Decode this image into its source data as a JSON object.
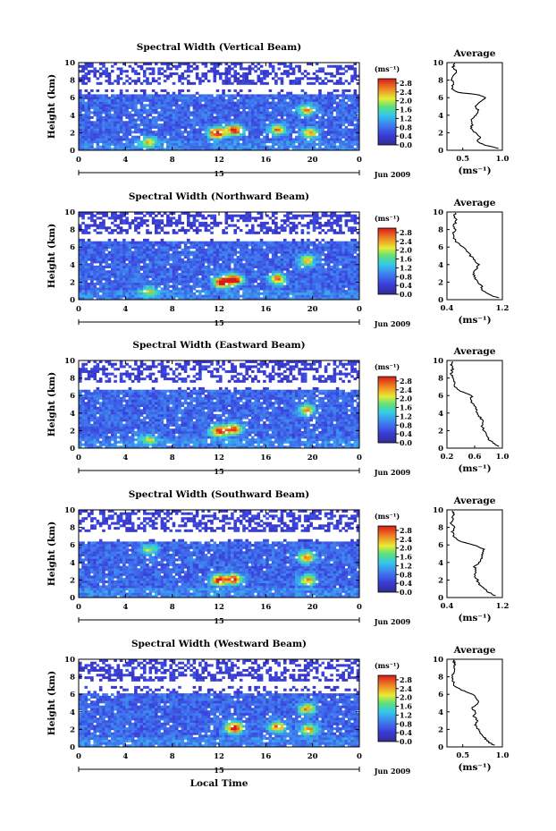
{
  "figure": {
    "xlabel": "Local Time",
    "date_label": "Jun 2009",
    "day_label": "15",
    "ylabel": "Height (km)",
    "colorbar_unit": "(ms⁻¹)",
    "avg_title": "Average",
    "avg_unit": "(ms⁻¹)"
  },
  "chart_data": [
    {
      "type": "heatmap",
      "title": "Spectral Width (Vertical Beam)",
      "xlabel": "Local Time",
      "ylabel": "Height (km)",
      "xticks": [
        "0",
        "4",
        "8",
        "12",
        "16",
        "20",
        "0"
      ],
      "xlim": [
        0,
        24
      ],
      "yticks": [
        "0",
        "2",
        "4",
        "6",
        "8",
        "10"
      ],
      "ylim": [
        0,
        10
      ],
      "colorbar": {
        "unit": "(ms⁻¹)",
        "ticks": [
          "0.0",
          "0.4",
          "0.8",
          "1.2",
          "1.6",
          "2.0",
          "2.4",
          "2.8"
        ],
        "range": [
          0,
          3.0
        ]
      },
      "coverage_top_km": 6.5,
      "sparse_layer_km": [
        7.0,
        10.0
      ],
      "hotspots": [
        {
          "t": 11.8,
          "h": 2.0,
          "v": 2.6
        },
        {
          "t": 13.3,
          "h": 2.3,
          "v": 2.4
        },
        {
          "t": 17.0,
          "h": 2.4,
          "v": 1.9
        },
        {
          "t": 19.5,
          "h": 4.6,
          "v": 1.7
        },
        {
          "t": 19.8,
          "h": 2.0,
          "v": 1.8
        },
        {
          "t": 6.0,
          "h": 1.0,
          "v": 1.4
        }
      ],
      "avg_profile": {
        "title": "Average",
        "xlabel": "(ms⁻¹)",
        "xticks": [
          "0.5",
          "1.0"
        ],
        "xlim": [
          0.3,
          1.0
        ],
        "ylim": [
          0,
          10
        ],
        "height": [
          0.2,
          0.6,
          1.0,
          1.5,
          2.0,
          2.5,
          3.0,
          3.5,
          4.0,
          4.5,
          5.0,
          5.5,
          6.0,
          6.3,
          6.6,
          7.0,
          7.5,
          8.0,
          8.5,
          9.0,
          9.5,
          9.9
        ],
        "value": [
          0.95,
          0.78,
          0.68,
          0.72,
          0.66,
          0.6,
          0.62,
          0.6,
          0.66,
          0.7,
          0.66,
          0.72,
          0.78,
          0.72,
          0.45,
          0.35,
          0.38,
          0.36,
          0.39,
          0.42,
          0.38,
          0.4
        ]
      }
    },
    {
      "type": "heatmap",
      "title": "Spectral Width (Northward Beam)",
      "xlabel": "Local Time",
      "ylabel": "Height (km)",
      "xticks": [
        "0",
        "4",
        "8",
        "12",
        "16",
        "20",
        "0"
      ],
      "xlim": [
        0,
        24
      ],
      "yticks": [
        "0",
        "2",
        "4",
        "6",
        "8",
        "10"
      ],
      "ylim": [
        0,
        10
      ],
      "colorbar": {
        "unit": "(ms⁻¹)",
        "ticks": [
          "0.0",
          "0.4",
          "0.8",
          "1.2",
          "1.6",
          "2.0",
          "2.4",
          "2.8"
        ],
        "range": [
          0,
          3.0
        ]
      },
      "coverage_top_km": 6.8,
      "sparse_layer_km": [
        7.0,
        10.0
      ],
      "hotspots": [
        {
          "t": 12.2,
          "h": 2.0,
          "v": 2.5
        },
        {
          "t": 13.3,
          "h": 2.3,
          "v": 2.8
        },
        {
          "t": 17.0,
          "h": 2.4,
          "v": 2.0
        },
        {
          "t": 19.5,
          "h": 4.5,
          "v": 1.6
        },
        {
          "t": 6.0,
          "h": 1.0,
          "v": 1.3
        }
      ],
      "avg_profile": {
        "title": "Average",
        "xlabel": "(ms⁻¹)",
        "xticks": [
          "0.4",
          "1.2"
        ],
        "xlim": [
          0.4,
          1.2
        ],
        "ylim": [
          0,
          10
        ],
        "height": [
          0.2,
          0.6,
          1.0,
          1.5,
          2.0,
          2.5,
          3.0,
          3.5,
          4.0,
          4.5,
          5.0,
          5.5,
          6.0,
          6.5,
          7.0,
          7.5,
          8.0,
          8.5,
          9.0,
          9.5,
          9.9
        ],
        "value": [
          1.15,
          1.0,
          0.92,
          0.9,
          0.85,
          0.8,
          0.78,
          0.82,
          0.86,
          0.8,
          0.74,
          0.7,
          0.62,
          0.55,
          0.5,
          0.48,
          0.52,
          0.5,
          0.54,
          0.5,
          0.52
        ]
      }
    },
    {
      "type": "heatmap",
      "title": "Spectral Width (Eastward Beam)",
      "xlabel": "Local Time",
      "ylabel": "Height (km)",
      "xticks": [
        "0",
        "4",
        "8",
        "12",
        "16",
        "20",
        "0"
      ],
      "xlim": [
        0,
        24
      ],
      "yticks": [
        "0",
        "2",
        "4",
        "6",
        "8",
        "10"
      ],
      "ylim": [
        0,
        10
      ],
      "colorbar": {
        "unit": "(ms⁻¹)",
        "ticks": [
          "0.0",
          "0.4",
          "0.8",
          "1.2",
          "1.6",
          "2.0",
          "2.4",
          "2.8"
        ],
        "range": [
          0,
          3.0
        ]
      },
      "coverage_top_km": 6.6,
      "sparse_layer_km": [
        7.0,
        10.0
      ],
      "hotspots": [
        {
          "t": 12.0,
          "h": 2.0,
          "v": 2.4
        },
        {
          "t": 13.3,
          "h": 2.2,
          "v": 2.2
        },
        {
          "t": 19.5,
          "h": 4.4,
          "v": 1.7
        },
        {
          "t": 6.0,
          "h": 1.0,
          "v": 1.2
        }
      ],
      "avg_profile": {
        "title": "Average",
        "xlabel": "(ms⁻¹)",
        "xticks": [
          "0.2",
          "0.6",
          "1.0"
        ],
        "xlim": [
          0.2,
          1.0
        ],
        "ylim": [
          0,
          10
        ],
        "height": [
          0.2,
          0.6,
          1.0,
          1.5,
          2.0,
          2.5,
          3.0,
          3.5,
          4.0,
          4.5,
          5.0,
          5.5,
          6.0,
          6.5,
          7.0,
          7.5,
          8.0,
          8.5,
          9.0,
          9.5,
          9.9
        ],
        "value": [
          0.95,
          0.86,
          0.8,
          0.78,
          0.74,
          0.7,
          0.72,
          0.68,
          0.64,
          0.62,
          0.58,
          0.54,
          0.56,
          0.4,
          0.32,
          0.3,
          0.28,
          0.26,
          0.28,
          0.26,
          0.28
        ]
      }
    },
    {
      "type": "heatmap",
      "title": "Spectral Width (Southward Beam)",
      "xlabel": "Local Time",
      "ylabel": "Height (km)",
      "xticks": [
        "0",
        "4",
        "8",
        "12",
        "16",
        "20",
        "0"
      ],
      "xlim": [
        0,
        24
      ],
      "yticks": [
        "0",
        "2",
        "4",
        "6",
        "8",
        "10"
      ],
      "ylim": [
        0,
        10
      ],
      "colorbar": {
        "unit": "(ms⁻¹)",
        "ticks": [
          "0.0",
          "0.4",
          "0.8",
          "1.2",
          "1.6",
          "2.0",
          "2.4",
          "2.8"
        ],
        "range": [
          0,
          3.0
        ]
      },
      "coverage_top_km": 6.4,
      "sparse_layer_km": [
        6.8,
        10.0
      ],
      "hotspots": [
        {
          "t": 12.0,
          "h": 2.0,
          "v": 2.3
        },
        {
          "t": 13.3,
          "h": 2.1,
          "v": 2.2
        },
        {
          "t": 19.5,
          "h": 4.6,
          "v": 2.0
        },
        {
          "t": 19.6,
          "h": 2.0,
          "v": 1.8
        },
        {
          "t": 6.0,
          "h": 5.5,
          "v": 1.2
        }
      ],
      "avg_profile": {
        "title": "Average",
        "xlabel": "(ms⁻¹)",
        "xticks": [
          "0.4",
          "1.2"
        ],
        "xlim": [
          0.4,
          1.2
        ],
        "ylim": [
          0,
          10
        ],
        "height": [
          0.2,
          0.6,
          1.0,
          1.5,
          2.0,
          2.5,
          3.0,
          3.5,
          4.0,
          4.5,
          5.0,
          5.5,
          6.0,
          6.5,
          7.0,
          7.5,
          8.0,
          8.5,
          9.0,
          9.5,
          9.9
        ],
        "value": [
          1.1,
          1.0,
          0.95,
          0.86,
          0.84,
          0.8,
          0.82,
          0.8,
          0.86,
          0.9,
          0.92,
          0.94,
          0.78,
          0.56,
          0.5,
          0.48,
          0.5,
          0.46,
          0.48,
          0.5,
          0.48
        ]
      }
    },
    {
      "type": "heatmap",
      "title": "Spectral Width (Westward Beam)",
      "xlabel": "Local Time",
      "ylabel": "Height (km)",
      "xticks": [
        "0",
        "4",
        "8",
        "12",
        "16",
        "20",
        "0"
      ],
      "xlim": [
        0,
        24
      ],
      "yticks": [
        "0",
        "2",
        "4",
        "6",
        "8",
        "10"
      ],
      "ylim": [
        0,
        10
      ],
      "colorbar": {
        "unit": "(ms⁻¹)",
        "ticks": [
          "0.0",
          "0.4",
          "0.8",
          "1.2",
          "1.6",
          "2.0",
          "2.4",
          "2.8"
        ],
        "range": [
          0,
          3.0
        ]
      },
      "coverage_top_km": 6.2,
      "sparse_layer_km": [
        7.0,
        10.0
      ],
      "hotspots": [
        {
          "t": 13.3,
          "h": 2.2,
          "v": 2.7
        },
        {
          "t": 17.0,
          "h": 2.3,
          "v": 2.0
        },
        {
          "t": 19.5,
          "h": 4.4,
          "v": 1.8
        },
        {
          "t": 19.7,
          "h": 2.0,
          "v": 1.8
        }
      ],
      "avg_profile": {
        "title": "Average",
        "xlabel": "(ms⁻¹)",
        "xticks": [
          "0.5",
          "1.0"
        ],
        "xlim": [
          0.3,
          1.0
        ],
        "ylim": [
          0,
          10
        ],
        "height": [
          0.2,
          0.6,
          1.0,
          1.5,
          2.0,
          2.5,
          3.0,
          3.5,
          4.0,
          4.5,
          5.0,
          5.5,
          6.0,
          6.5,
          7.0,
          7.5,
          8.0,
          8.5,
          9.0,
          9.5,
          9.9
        ],
        "value": [
          0.9,
          0.82,
          0.78,
          0.72,
          0.7,
          0.66,
          0.68,
          0.64,
          0.66,
          0.62,
          0.7,
          0.68,
          0.62,
          0.48,
          0.4,
          0.38,
          0.36,
          0.4,
          0.38,
          0.4,
          0.38
        ]
      }
    }
  ]
}
